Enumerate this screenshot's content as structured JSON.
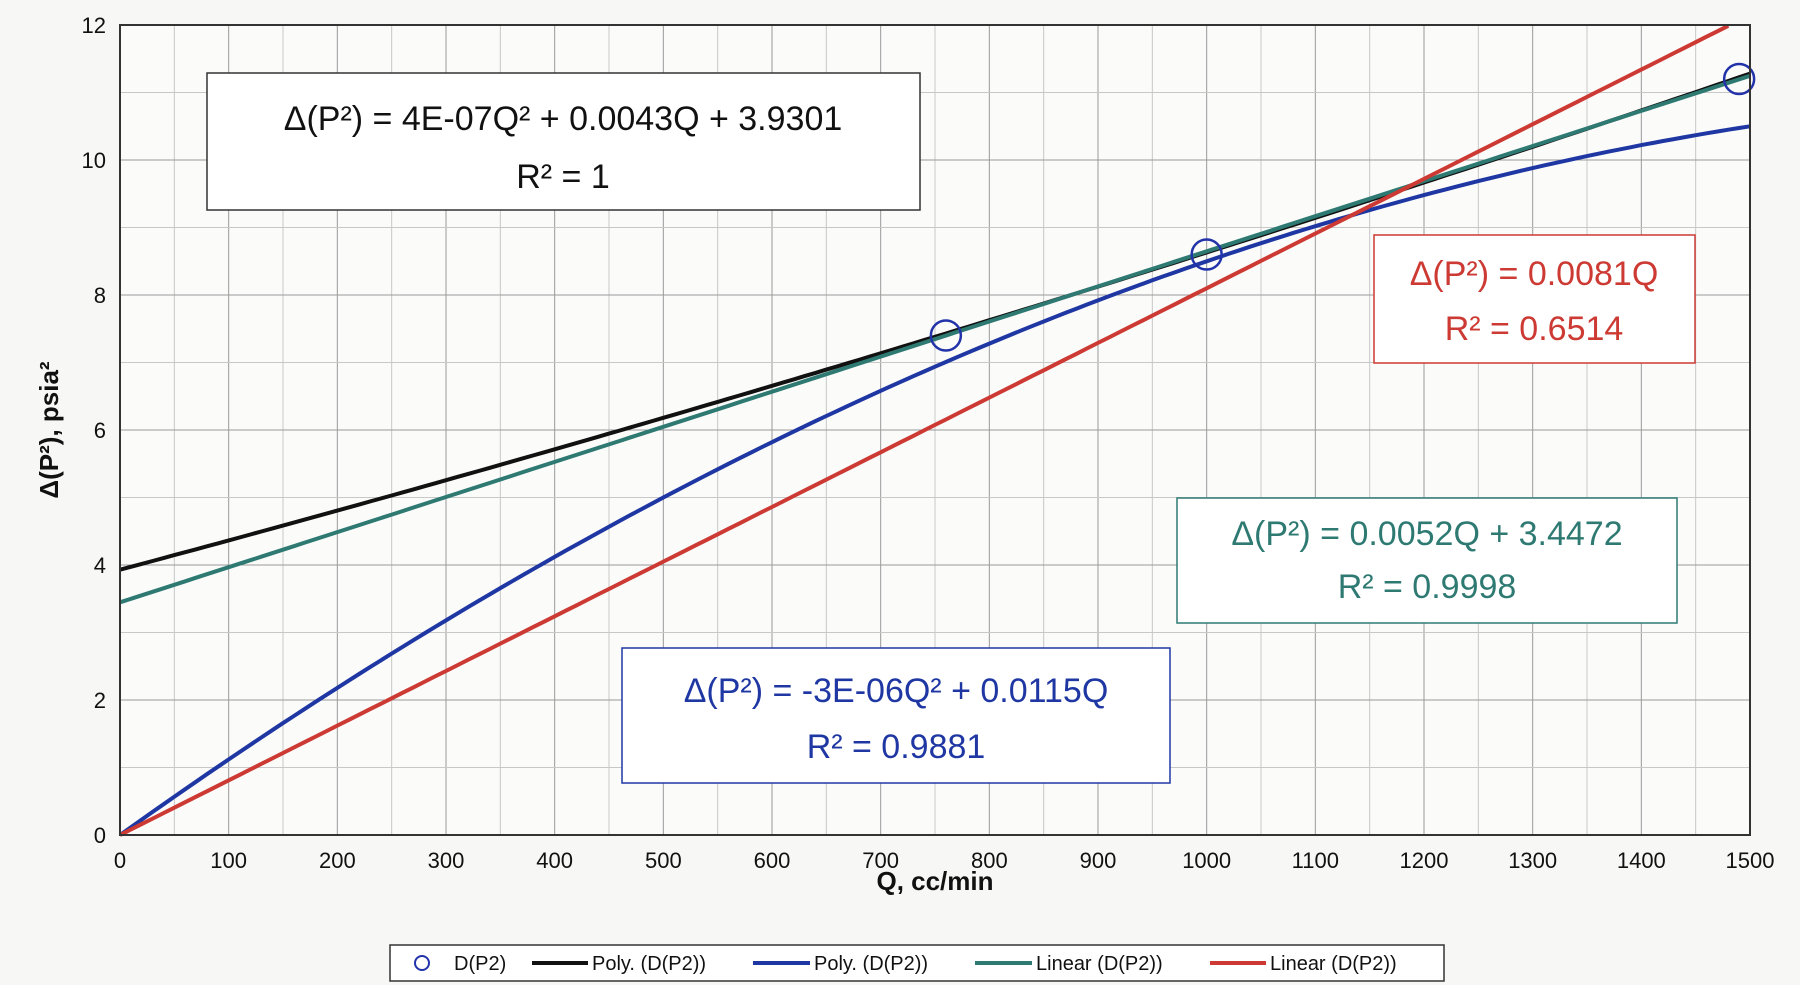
{
  "chart_data": {
    "type": "scatter",
    "title": "",
    "xlabel": "Q, cc/min",
    "ylabel": "Δ(P²), psia²",
    "xlim": [
      0,
      1500
    ],
    "ylim": [
      0,
      12
    ],
    "x_ticks": [
      "0",
      "100",
      "200",
      "300",
      "400",
      "500",
      "600",
      "700",
      "800",
      "900",
      "1000",
      "1100",
      "1200",
      "1300",
      "1400",
      "1500"
    ],
    "y_ticks": [
      "0",
      "2",
      "4",
      "6",
      "8",
      "10",
      "12"
    ],
    "grid": true,
    "legend_placement": "bottom",
    "points": {
      "name": "D(P2)",
      "x": [
        760,
        1000,
        1490
      ],
      "y": [
        7.4,
        8.6,
        11.2
      ],
      "color": "#2233aa"
    },
    "fits": [
      {
        "name": "Poly. (D(P2))",
        "kind": "poly2",
        "coef": [
          4e-07,
          0.0043,
          3.9301
        ],
        "color": "#111111",
        "equation": "Δ(P²) = 4E-07Q² + 0.0043Q + 3.9301",
        "r2": "R² = 1"
      },
      {
        "name": "Poly. (D(P2))",
        "kind": "poly2",
        "coef": [
          -3e-06,
          0.0115,
          0
        ],
        "color": "#1f37a3",
        "equation": "Δ(P²) = -3E-06Q² + 0.0115Q",
        "r2": "R² = 0.9881"
      },
      {
        "name": "Linear (D(P2))",
        "kind": "linear",
        "coef": [
          0,
          0.0052,
          3.4472
        ],
        "color": "#2e7a72",
        "equation": "Δ(P²) = 0.0052Q + 3.4472",
        "r2": "R² = 0.9998"
      },
      {
        "name": "Linear (D(P2))",
        "kind": "linear",
        "coef": [
          0,
          0.0081,
          0
        ],
        "color": "#cc3a33",
        "equation": "Δ(P²) = 0.0081Q",
        "r2": "R² = 0.6514"
      }
    ]
  }
}
